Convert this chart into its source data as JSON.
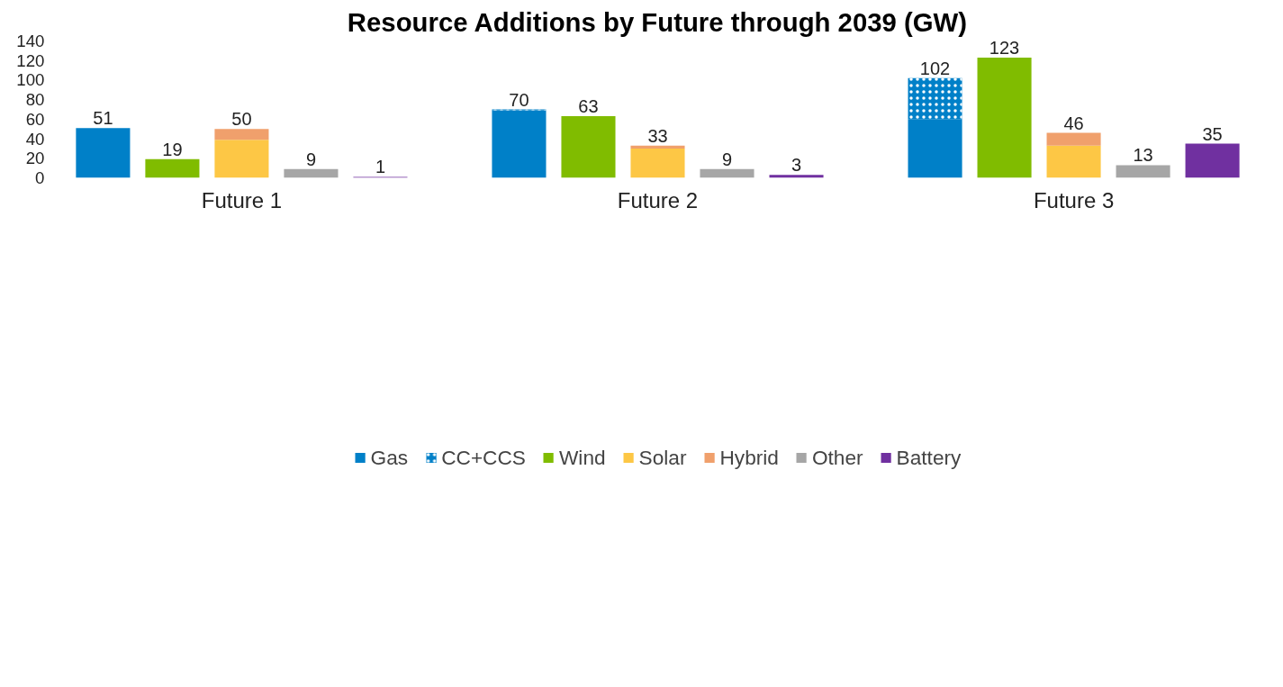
{
  "chart_data": {
    "type": "bar",
    "title": "Resource Additions by Future through 2039 (GW)",
    "stacked": true,
    "categories": [
      null,
      null,
      "Future 1",
      null,
      null,
      null,
      null,
      null,
      "Future 2",
      null,
      null,
      null,
      null,
      null,
      "Future 3",
      null,
      null
    ],
    "series": [
      {
        "name": "Gas",
        "color": "#0080c8",
        "values": [
          51,
          null,
          null,
          null,
          null,
          null,
          69,
          null,
          null,
          null,
          null,
          null,
          60,
          null,
          null,
          null,
          null
        ]
      },
      {
        "name": "CC+CCS",
        "color": "#0080c8",
        "values": [
          null,
          null,
          null,
          null,
          null,
          null,
          1,
          null,
          null,
          null,
          null,
          null,
          42,
          null,
          null,
          null,
          null
        ]
      },
      {
        "name": "Wind",
        "color": "#80bc00",
        "values": [
          null,
          19,
          null,
          null,
          null,
          null,
          null,
          63,
          null,
          null,
          null,
          null,
          null,
          123,
          null,
          null,
          null
        ]
      },
      {
        "name": "Solar",
        "color": "#fdc745",
        "values": [
          null,
          null,
          39,
          null,
          null,
          null,
          null,
          null,
          30,
          null,
          null,
          null,
          null,
          null,
          33,
          null,
          null
        ]
      },
      {
        "name": "Hybrid",
        "color": "#f0a06c",
        "values": [
          null,
          null,
          11,
          null,
          null,
          null,
          null,
          null,
          3,
          null,
          null,
          null,
          null,
          null,
          13,
          null,
          null
        ]
      },
      {
        "name": "Other",
        "color": "#a6a6a6",
        "values": [
          null,
          null,
          null,
          9,
          null,
          null,
          null,
          null,
          null,
          9,
          null,
          null,
          null,
          null,
          null,
          13,
          null
        ]
      },
      {
        "name": "Battery",
        "color": "#7030a0",
        "values": [
          null,
          null,
          null,
          null,
          1,
          null,
          null,
          null,
          null,
          null,
          3,
          null,
          null,
          null,
          null,
          null,
          35
        ]
      }
    ],
    "totals": [
      "51",
      "19",
      "50",
      "9",
      "1",
      null,
      "70",
      "63",
      "33",
      "9",
      "3",
      null,
      "102",
      "123",
      "46",
      "13",
      "35"
    ],
    "ylim": [
      0,
      140
    ],
    "yticks": [
      0,
      20,
      40,
      60,
      80,
      100,
      120,
      140
    ],
    "grid": false,
    "legend": "bottom"
  }
}
